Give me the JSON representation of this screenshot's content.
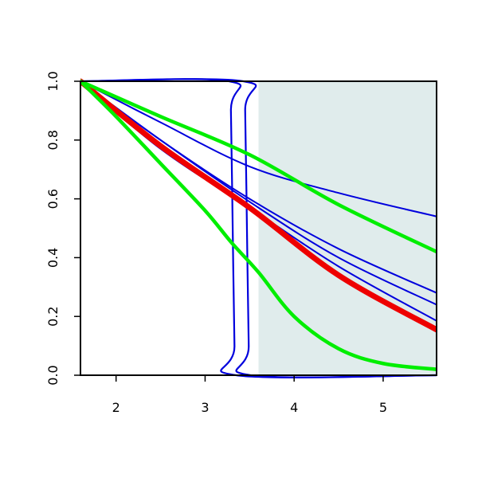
{
  "chart_data": {
    "type": "line",
    "xlim": [
      1.6,
      5.6
    ],
    "ylim": [
      0,
      1
    ],
    "x_ticks": [
      2,
      3,
      4,
      5
    ],
    "x_tick_labels": [
      "2",
      "3",
      "4",
      "5"
    ],
    "y_ticks": [
      0,
      0.2,
      0.4,
      0.6,
      0.8,
      1
    ],
    "y_tick_labels": [
      "0.0",
      "0.2",
      "0.4",
      "0.6",
      "0.8",
      "1.0"
    ],
    "shaded_region": {
      "x": [
        3.6,
        5.6
      ],
      "color": "#e0ecec"
    },
    "grid": false,
    "legend": "none",
    "series": [
      {
        "color": "#0000dd",
        "width": 2.2,
        "x": [
          1.6,
          3.27,
          3.29,
          3.31,
          3.33,
          3.35,
          5.6
        ],
        "y": [
          1.0,
          1.0,
          0.9,
          0.5,
          0.1,
          0.0,
          0.0
        ]
      },
      {
        "color": "#0000dd",
        "width": 2.2,
        "x": [
          1.6,
          3.43,
          3.45,
          3.47,
          3.49,
          3.51,
          5.6
        ],
        "y": [
          1.0,
          1.0,
          0.9,
          0.5,
          0.1,
          0.0,
          0.0
        ]
      },
      {
        "color": "#0000dd",
        "width": 2,
        "x": [
          1.6,
          2.5,
          3.5,
          4.5,
          5.6
        ],
        "y": [
          1.0,
          0.86,
          0.71,
          0.62,
          0.54
        ]
      },
      {
        "color": "#0000dd",
        "width": 2,
        "x": [
          1.6,
          2.5,
          3.5,
          4.5,
          5.6
        ],
        "y": [
          1.0,
          0.8,
          0.6,
          0.43,
          0.28
        ]
      },
      {
        "color": "#0000dd",
        "width": 2,
        "x": [
          1.6,
          2.5,
          3.5,
          4.5,
          5.6
        ],
        "y": [
          1.0,
          0.8,
          0.59,
          0.4,
          0.24
        ]
      },
      {
        "color": "#0000dd",
        "width": 2,
        "x": [
          1.6,
          2.5,
          3.5,
          4.5,
          5.6
        ],
        "y": [
          1.0,
          0.77,
          0.57,
          0.37,
          0.185
        ]
      },
      {
        "color": "#ee0000",
        "width": 7,
        "x": [
          1.6,
          2.5,
          3.5,
          4.5,
          5.6
        ],
        "y": [
          1.0,
          0.78,
          0.57,
          0.34,
          0.155
        ]
      },
      {
        "color": "#00ee00",
        "width": 4.5,
        "x": [
          1.6,
          2.5,
          3.5,
          4.5,
          5.6
        ],
        "y": [
          1.0,
          0.88,
          0.75,
          0.58,
          0.42
        ]
      },
      {
        "color": "#00ee00",
        "width": 4.5,
        "x": [
          1.6,
          2.0,
          2.5,
          3.0,
          3.3,
          3.6,
          4.0,
          4.5,
          5.0,
          5.6
        ],
        "y": [
          1.0,
          0.88,
          0.72,
          0.56,
          0.45,
          0.35,
          0.2,
          0.09,
          0.04,
          0.02
        ]
      }
    ]
  }
}
